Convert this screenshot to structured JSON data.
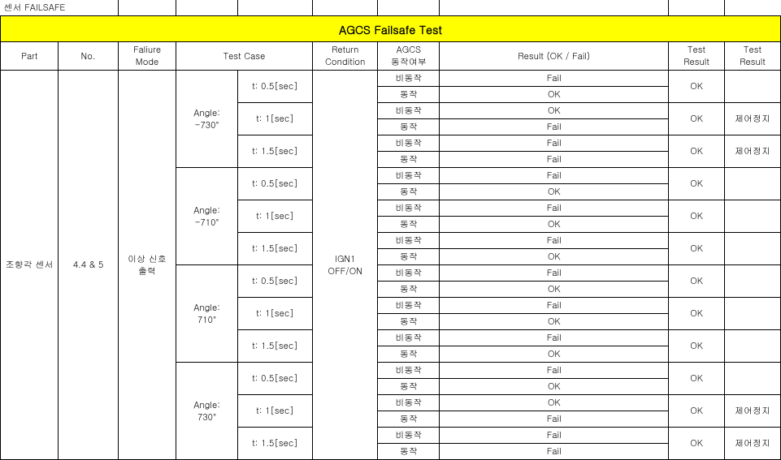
{
  "top_label": "센서 FAILSAFE",
  "banner": "AGCS Failsafe Test",
  "headers": {
    "part": "Part",
    "no": "No.",
    "mode": "Faliure\nMode",
    "testcase": "Test Case",
    "return": "Return\nCondition",
    "agcs": "AGCS\n동작여부",
    "result": "Result (OK / Fail)",
    "tr1": "Test\nResult",
    "tr2": "Test\nResult"
  },
  "part": "조향각 센서",
  "no": "4.4 & 5",
  "mode": "이상 신호\n출력",
  "return_cond": "IGN1\nOFF/ON",
  "angles": [
    {
      "label": "Angle:\n-730°",
      "times": [
        {
          "t": "t: 0.5[sec]",
          "rows": [
            {
              "agcs": "비동작",
              "res": "Fail"
            },
            {
              "agcs": "동작",
              "res": "OK"
            }
          ],
          "tr1": "OK",
          "tr2": ""
        },
        {
          "t": "t: 1[sec]",
          "rows": [
            {
              "agcs": "비동작",
              "res": "OK"
            },
            {
              "agcs": "동작",
              "res": "Fail"
            }
          ],
          "tr1": "OK",
          "tr2": "제어정지"
        },
        {
          "t": "t: 1.5[sec]",
          "rows": [
            {
              "agcs": "비동작",
              "res": "Fail"
            },
            {
              "agcs": "동작",
              "res": "Fail"
            }
          ],
          "tr1": "OK",
          "tr2": "제어정지"
        }
      ]
    },
    {
      "label": "Angle:\n-710°",
      "times": [
        {
          "t": "t: 0.5[sec]",
          "rows": [
            {
              "agcs": "비동작",
              "res": "Fail"
            },
            {
              "agcs": "동작",
              "res": "OK"
            }
          ],
          "tr1": "OK",
          "tr2": ""
        },
        {
          "t": "t: 1[sec]",
          "rows": [
            {
              "agcs": "비동작",
              "res": "Fail"
            },
            {
              "agcs": "동작",
              "res": "OK"
            }
          ],
          "tr1": "OK",
          "tr2": ""
        },
        {
          "t": "t: 1.5[sec]",
          "rows": [
            {
              "agcs": "비동작",
              "res": "Fail"
            },
            {
              "agcs": "동작",
              "res": "OK"
            }
          ],
          "tr1": "OK",
          "tr2": ""
        }
      ]
    },
    {
      "label": "Angle:\n710°",
      "times": [
        {
          "t": "t: 0.5[sec]",
          "rows": [
            {
              "agcs": "비동작",
              "res": "Fail"
            },
            {
              "agcs": "동작",
              "res": "OK"
            }
          ],
          "tr1": "OK",
          "tr2": ""
        },
        {
          "t": "t: 1[sec]",
          "rows": [
            {
              "agcs": "비동작",
              "res": "Fail"
            },
            {
              "agcs": "동작",
              "res": "OK"
            }
          ],
          "tr1": "OK",
          "tr2": ""
        },
        {
          "t": "t: 1.5[sec]",
          "rows": [
            {
              "agcs": "비동작",
              "res": "Fail"
            },
            {
              "agcs": "동작",
              "res": "OK"
            }
          ],
          "tr1": "OK",
          "tr2": ""
        }
      ]
    },
    {
      "label": "Angle:\n730°",
      "times": [
        {
          "t": "t: 0.5[sec]",
          "rows": [
            {
              "agcs": "비동작",
              "res": "Fail"
            },
            {
              "agcs": "동작",
              "res": "OK"
            }
          ],
          "tr1": "OK",
          "tr2": ""
        },
        {
          "t": "t: 1[sec]",
          "rows": [
            {
              "agcs": "비동작",
              "res": "OK"
            },
            {
              "agcs": "동작",
              "res": "Fail"
            }
          ],
          "tr1": "OK",
          "tr2": "제어정지"
        },
        {
          "t": "t: 1.5[sec]",
          "rows": [
            {
              "agcs": "비동작",
              "res": "Fail"
            },
            {
              "agcs": "동작",
              "res": "Fail"
            }
          ],
          "tr1": "OK",
          "tr2": "제어정지"
        }
      ]
    }
  ],
  "colors": {
    "banner_bg": "#ffff00",
    "border": "#000000",
    "bg": "#ffffff"
  }
}
